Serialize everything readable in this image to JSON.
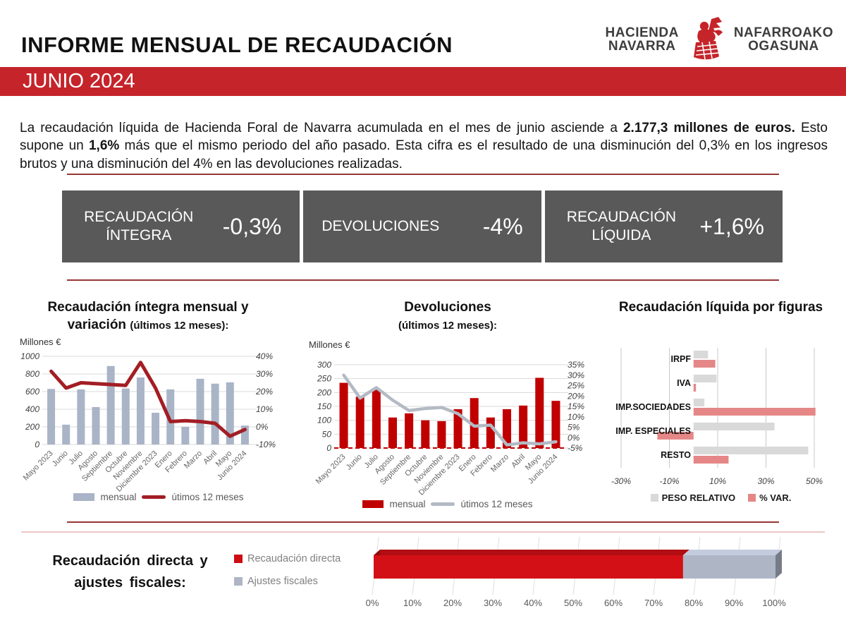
{
  "header": {
    "title": "INFORME MENSUAL DE RECAUDACIÓN",
    "period_band": "JUNIO 2024",
    "logo": {
      "left_line1": "HACIENDA",
      "left_line2": "NAVARRA",
      "right_line1": "NAFARROAKO",
      "right_line2": "OGASUNA"
    }
  },
  "intro": {
    "p1": "La recaudación líquida de Hacienda Foral de Navarra acumulada en el mes de junio asciende a ",
    "b1": "2.177,3 millones de euros.",
    "p2": " Esto supone un ",
    "b2": "1,6%",
    "p3": " más que el mismo periodo del año pasado. Esta cifra es el resultado de una disminución del 0,3% en los ingresos brutos y una disminución del 4% en las devoluciones realizadas."
  },
  "summary_boxes": [
    {
      "label": "RECAUDACIÓN ÍNTEGRA",
      "value": "-0,3%"
    },
    {
      "label": "DEVOLUCIONES",
      "value": "-4%"
    },
    {
      "label": "RECAUDACIÓN LÍQUIDA",
      "value": "+1,6%"
    }
  ],
  "colors": {
    "band_red": "#C5242A",
    "rule_maroon": "#953735",
    "box_gray": "#595959",
    "bar_blue_gray": "#A9B4C7",
    "line_dark_red": "#A21E24",
    "bar_dark_red": "#C00000",
    "line_gray": "#B3BAC4",
    "hbar_gray": "#D9D9D9",
    "hbar_pink": "#E58787",
    "stack_red": "#D31016",
    "stack_gray": "#AEB6C6"
  },
  "chart_data": [
    {
      "id": "integra",
      "type": "bar",
      "title": "Recaudación íntegra mensual y variación",
      "title_suffix": "(últimos 12 meses):",
      "unit": "Millones €",
      "categories": [
        "Mayo 2023",
        "Junio",
        "Julio",
        "Agosto",
        "Septiembre",
        "Octubre",
        "Noviembre",
        "Diciembre 2023",
        "Enero",
        "Febrero",
        "Marzo",
        "Abril",
        "Mayo",
        "Junio 2024"
      ],
      "series": [
        {
          "name": "mensual",
          "kind": "bar",
          "axis": "left",
          "color": "#A9B4C7",
          "values": [
            630,
            225,
            625,
            425,
            890,
            635,
            760,
            360,
            625,
            200,
            745,
            690,
            705,
            215
          ]
        },
        {
          "name": "útimos 12 meses",
          "kind": "line",
          "axis": "right",
          "color": "#A21E24",
          "values": [
            31.5,
            22,
            25,
            24.5,
            24,
            23.5,
            36.5,
            22,
            3,
            3.5,
            3,
            2,
            -5.3,
            -1.5
          ]
        }
      ],
      "left_axis": {
        "min": 0,
        "max": 1000,
        "step": 200
      },
      "right_axis": {
        "min": -10,
        "max": 40,
        "step": 10,
        "suffix": "%"
      },
      "grid": true,
      "legend_position": "bottom"
    },
    {
      "id": "devoluciones",
      "type": "bar",
      "title": "Devoluciones",
      "title_suffix": "(últimos 12 meses):",
      "unit": "Millones €",
      "categories": [
        "Mayo 2023",
        "Junio",
        "Julio",
        "Agosto",
        "Septiembre",
        "Octubre",
        "Noviembre",
        "Diciembre 2023",
        "Enero",
        "Febrero",
        "Marzo",
        "Abril",
        "Mayo",
        "Junio 2024"
      ],
      "series": [
        {
          "name": "mensual",
          "kind": "bar",
          "axis": "left",
          "color": "#C00000",
          "values": [
            235,
            185,
            210,
            110,
            125,
            100,
            97,
            140,
            180,
            110,
            140,
            153,
            253,
            170
          ]
        },
        {
          "name": "útimos 12 meses",
          "kind": "line",
          "axis": "right",
          "color": "#B3BAC4",
          "values": [
            30,
            19,
            24,
            18,
            13,
            14,
            14.5,
            11.5,
            5.5,
            6,
            -3.5,
            -2.5,
            -3,
            -2
          ]
        }
      ],
      "left_axis": {
        "min": 0,
        "max": 300,
        "step": 50
      },
      "right_axis": {
        "min": -5,
        "max": 35,
        "step": 5,
        "suffix": "%"
      },
      "grid": true,
      "dashed_red_baseline": true,
      "legend_position": "bottom"
    },
    {
      "id": "figuras",
      "type": "bar",
      "title": "Recaudación líquida por figuras",
      "orientation": "horizontal",
      "categories": [
        "IRPF",
        "IVA",
        "IMP.SOCIEDADES",
        "IMP. ESPECIALES",
        "RESTO"
      ],
      "series": [
        {
          "name": "PESO RELATIVO",
          "color": "#D9D9D9",
          "values": [
            6,
            9.5,
            4.5,
            33.5,
            47.5
          ]
        },
        {
          "name": "% VAR.",
          "color": "#E58787",
          "values": [
            9,
            1,
            50.5,
            -15,
            14.5
          ]
        }
      ],
      "x_axis": {
        "min": -30,
        "max": 50,
        "ticks": [
          -30,
          -10,
          10,
          30,
          50
        ],
        "suffix": "%"
      },
      "legend_position": "bottom"
    },
    {
      "id": "directa",
      "type": "bar",
      "style": "stacked-3d",
      "title": "Recaudación directa y ajustes fiscales:",
      "segments": [
        {
          "name": "Recaudación directa",
          "color": "#D31016",
          "value": 77
        },
        {
          "name": "Ajustes fiscales",
          "color": "#AEB6C6",
          "value": 23
        }
      ],
      "x_axis": {
        "min": 0,
        "max": 100,
        "step": 10,
        "suffix": "%"
      }
    }
  ]
}
